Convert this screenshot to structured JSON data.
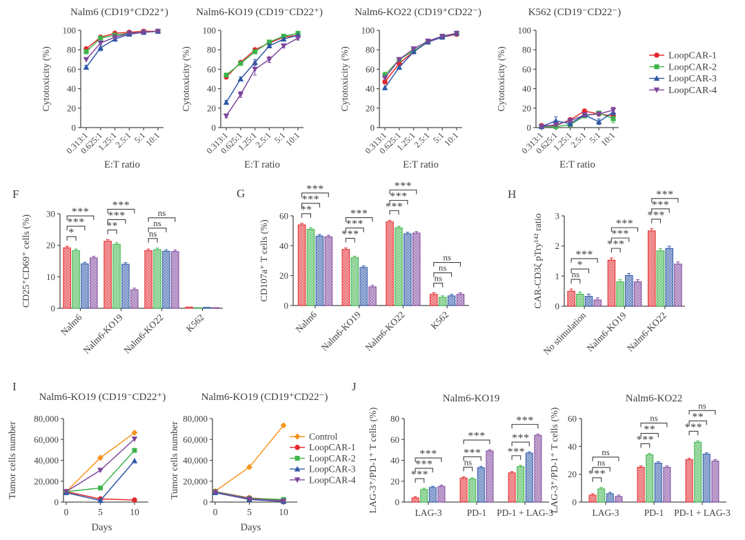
{
  "palette": {
    "red": "#e3282c",
    "green": "#3cb44a",
    "blue": "#2d57a7",
    "purple": "#7e459c",
    "orange": "#f7941e"
  },
  "text_color": "#3e3e3e",
  "panels": {
    "f": "F",
    "g": "G",
    "h": "H",
    "i": "I",
    "j": "J"
  },
  "legend_top": {
    "items": [
      {
        "label": "LoopCAR-1",
        "color": "red",
        "marker": "circle"
      },
      {
        "label": "LoopCAR-2",
        "color": "green",
        "marker": "square"
      },
      {
        "label": "LoopCAR-3",
        "color": "blue",
        "marker": "triangle-up"
      },
      {
        "label": "LoopCAR-4",
        "color": "purple",
        "marker": "triangle-down"
      }
    ]
  },
  "legend_tumor": {
    "items": [
      {
        "label": "Control",
        "color": "orange",
        "marker": "diamond"
      },
      {
        "label": "LoopCAR-1",
        "color": "red",
        "marker": "circle"
      },
      {
        "label": "LoopCAR-2",
        "color": "green",
        "marker": "square"
      },
      {
        "label": "LoopCAR-3",
        "color": "blue",
        "marker": "triangle-up"
      },
      {
        "label": "LoopCAR-4",
        "color": "purple",
        "marker": "triangle-down"
      }
    ]
  },
  "chart_data": [
    {
      "id": "cytotoxicity-nalm6",
      "type": "line",
      "title": "Nalm6 (CD19⁺CD22⁺)",
      "ylabel": "Cytotoxicity (%)",
      "xlabel": "E:T ratio",
      "ylim": [
        0,
        100
      ],
      "yticks": [
        0,
        20,
        40,
        60,
        80,
        100
      ],
      "categories": [
        "0.313:1",
        "0.625:1",
        "1.25:1",
        "2.5:1",
        "5:1",
        "10:1"
      ],
      "series": [
        {
          "name": "LoopCAR-1",
          "color": "red",
          "marker": "circle",
          "values": [
            81,
            93,
            97,
            98,
            99,
            99
          ]
        },
        {
          "name": "LoopCAR-2",
          "color": "green",
          "marker": "square",
          "values": [
            78,
            92,
            95,
            97,
            98,
            99
          ]
        },
        {
          "name": "LoopCAR-3",
          "color": "blue",
          "marker": "triangle-up",
          "values": [
            62,
            82,
            91,
            96,
            98,
            99
          ],
          "err": [
            2,
            3,
            2,
            1,
            0,
            0
          ]
        },
        {
          "name": "LoopCAR-4",
          "color": "purple",
          "marker": "triangle-down",
          "values": [
            70,
            87,
            93,
            97,
            98,
            99
          ]
        }
      ]
    },
    {
      "id": "cytotoxicity-nalm6-ko19",
      "type": "line",
      "title": "Nalm6-KO19 (CD19⁻CD22⁺)",
      "ylabel": "Cytotoxicity (%)",
      "xlabel": "E:T ratio",
      "ylim": [
        0,
        100
      ],
      "yticks": [
        0,
        20,
        40,
        60,
        80,
        100
      ],
      "categories": [
        "0.313:1",
        "0.625:1",
        "1.25:1",
        "2.5:1",
        "5:1",
        "10:1"
      ],
      "series": [
        {
          "name": "LoopCAR-1",
          "color": "red",
          "marker": "circle",
          "values": [
            52,
            67,
            80,
            87,
            93,
            95
          ]
        },
        {
          "name": "LoopCAR-2",
          "color": "green",
          "marker": "square",
          "values": [
            54,
            66,
            78,
            88,
            94,
            97
          ]
        },
        {
          "name": "LoopCAR-3",
          "color": "blue",
          "marker": "triangle-up",
          "values": [
            26,
            50,
            67,
            84,
            91,
            95
          ],
          "err": [
            2,
            2,
            3,
            2,
            0,
            0
          ]
        },
        {
          "name": "LoopCAR-4",
          "color": "purple",
          "marker": "triangle-down",
          "values": [
            12,
            34,
            60,
            70,
            84,
            92
          ],
          "err": [
            2,
            3,
            6,
            3,
            2,
            2
          ]
        }
      ]
    },
    {
      "id": "cytotoxicity-nalm6-ko22",
      "type": "line",
      "title": "Nalm6-KO22 (CD19⁺CD22⁻)",
      "ylabel": "Cytotoxicity (%)",
      "xlabel": "E:T ratio",
      "ylim": [
        0,
        100
      ],
      "yticks": [
        0,
        20,
        40,
        60,
        80,
        100
      ],
      "categories": [
        "0.313:1",
        "0.625:1",
        "1.25:1",
        "2.5:1",
        "5:1",
        "10:1"
      ],
      "series": [
        {
          "name": "LoopCAR-1",
          "color": "red",
          "marker": "circle",
          "values": [
            47,
            66,
            78,
            88,
            93,
            96
          ],
          "err": [
            2,
            2,
            1,
            0,
            0,
            0
          ]
        },
        {
          "name": "LoopCAR-2",
          "color": "green",
          "marker": "square",
          "values": [
            54,
            70,
            79,
            88,
            94,
            97
          ],
          "err": [
            3,
            2,
            1,
            0,
            0,
            0
          ]
        },
        {
          "name": "LoopCAR-3",
          "color": "blue",
          "marker": "triangle-up",
          "values": [
            41,
            62,
            78,
            88,
            93,
            97
          ]
        },
        {
          "name": "LoopCAR-4",
          "color": "purple",
          "marker": "triangle-down",
          "values": [
            51,
            70,
            81,
            89,
            94,
            97
          ]
        }
      ]
    },
    {
      "id": "cytotoxicity-k562",
      "type": "line",
      "title": "K562 (CD19⁻CD22⁻)",
      "ylabel": "Cytotoxicity (%)",
      "xlabel": "E:T ratio",
      "ylim": [
        0,
        100
      ],
      "yticks": [
        0,
        20,
        40,
        60,
        80,
        100
      ],
      "categories": [
        "0.313:1",
        "0.625:1",
        "1.25:1",
        "2.5:1",
        "5:1",
        "10:1"
      ],
      "series": [
        {
          "name": "LoopCAR-1",
          "color": "red",
          "marker": "circle",
          "values": [
            2,
            2,
            8,
            17,
            14,
            12
          ],
          "err": [
            1,
            1,
            2,
            2,
            2,
            3
          ]
        },
        {
          "name": "LoopCAR-2",
          "color": "green",
          "marker": "square",
          "values": [
            1,
            1,
            3,
            12,
            15,
            9
          ],
          "err": [
            1,
            1,
            1,
            2,
            2,
            4
          ]
        },
        {
          "name": "LoopCAR-3",
          "color": "blue",
          "marker": "triangle-up",
          "values": [
            1,
            7,
            4,
            13,
            6,
            16
          ],
          "err": [
            1,
            4,
            2,
            2,
            3,
            3
          ]
        },
        {
          "name": "LoopCAR-4",
          "color": "purple",
          "marker": "triangle-down",
          "values": [
            1,
            3,
            7,
            13,
            14,
            18
          ],
          "err": [
            1,
            2,
            2,
            2,
            2,
            3
          ]
        }
      ]
    },
    {
      "id": "cd25-cd69-activation",
      "type": "bar",
      "title": "",
      "ylabel": "CD25⁺CD69⁺ cells (%)",
      "ylim": [
        0,
        30
      ],
      "yticks": [
        0,
        10,
        20,
        30
      ],
      "err": 0.5,
      "categories": [
        "Nalm6",
        "Nalm6-KO19",
        "Nalm6-KO22",
        "K562"
      ],
      "series": [
        {
          "name": "LoopCAR-1",
          "color": "red",
          "values": [
            19.2,
            21.3,
            18.3,
            0.4
          ]
        },
        {
          "name": "LoopCAR-2",
          "color": "green",
          "values": [
            18.3,
            20.3,
            18.6,
            0.2
          ]
        },
        {
          "name": "LoopCAR-3",
          "color": "blue",
          "values": [
            14.1,
            14.0,
            18.1,
            0.3
          ]
        },
        {
          "name": "LoopCAR-4",
          "color": "purple",
          "values": [
            16.0,
            5.9,
            18.0,
            0.2
          ]
        }
      ],
      "sig": [
        [
          "*",
          "***",
          "***"
        ],
        [
          "**",
          "***",
          "***"
        ],
        [
          "ns",
          "ns",
          "ns"
        ],
        null
      ]
    },
    {
      "id": "cd107a-degranulation",
      "type": "bar",
      "title": "",
      "ylabel": "CD107a⁺ T cells (%)",
      "ylim": [
        0,
        60
      ],
      "yticks": [
        0,
        20,
        40,
        60
      ],
      "err": 1,
      "categories": [
        "Nalm6",
        "Nalm6-KO19",
        "Nalm6-KO22",
        "K562"
      ],
      "series": [
        {
          "name": "LoopCAR-1",
          "color": "red",
          "values": [
            54,
            37.5,
            56,
            7.5
          ]
        },
        {
          "name": "LoopCAR-2",
          "color": "green",
          "values": [
            51,
            32,
            52,
            5.5
          ]
        },
        {
          "name": "LoopCAR-3",
          "color": "blue",
          "values": [
            46.5,
            25.5,
            48,
            6.5
          ]
        },
        {
          "name": "LoopCAR-4",
          "color": "purple",
          "values": [
            46,
            12.5,
            48.5,
            7.5
          ]
        }
      ],
      "sig": [
        [
          "**",
          "***",
          "***"
        ],
        [
          "***",
          "***",
          "***"
        ],
        [
          "***",
          "***",
          "***"
        ],
        [
          "ns",
          "ns",
          "ns"
        ]
      ]
    },
    {
      "id": "car-cd3zeta-ratio",
      "type": "bar",
      "title": "",
      "ylabel": "CAR-CD3ζ pTry¹⁴² ratio",
      "ylim": [
        0,
        3
      ],
      "yticks": [
        0,
        1,
        2,
        3
      ],
      "err": 0.07,
      "categories": [
        "No stimulation",
        "Nalm6-KO19",
        "Nalm6-KO22"
      ],
      "series": [
        {
          "name": "LoopCAR-1",
          "color": "red",
          "values": [
            0.5,
            1.53,
            2.5
          ]
        },
        {
          "name": "LoopCAR-2",
          "color": "green",
          "values": [
            0.4,
            0.81,
            1.84
          ]
        },
        {
          "name": "LoopCAR-3",
          "color": "blue",
          "values": [
            0.33,
            1.02,
            1.92
          ]
        },
        {
          "name": "LoopCAR-4",
          "color": "purple",
          "values": [
            0.21,
            0.81,
            1.4
          ]
        }
      ],
      "sig": [
        [
          "ns",
          "*",
          "***"
        ],
        [
          "***",
          "***",
          "***"
        ],
        [
          "***",
          "***",
          "***"
        ]
      ]
    },
    {
      "id": "tumor-cells-ko19-cd19neg-cd22pos",
      "type": "line",
      "title": "Nalm6-KO19 (CD19⁻CD22⁺)",
      "ylabel": "Tumor cells number",
      "xlabel": "Days",
      "ylim": [
        0,
        80000
      ],
      "yticks": [
        0,
        20000,
        40000,
        60000,
        80000
      ],
      "x": [
        0,
        5,
        10
      ],
      "series": [
        {
          "name": "Control",
          "color": "orange",
          "marker": "diamond",
          "values": [
            10000,
            42500,
            66500
          ]
        },
        {
          "name": "LoopCAR-1",
          "color": "red",
          "marker": "circle",
          "values": [
            10000,
            3000,
            2000
          ]
        },
        {
          "name": "LoopCAR-2",
          "color": "green",
          "marker": "square",
          "values": [
            10000,
            13500,
            49500
          ]
        },
        {
          "name": "LoopCAR-3",
          "color": "blue",
          "marker": "triangle-up",
          "values": [
            9000,
            1500,
            39500
          ]
        },
        {
          "name": "LoopCAR-4",
          "color": "purple",
          "marker": "triangle-down",
          "values": [
            10000,
            30500,
            60500
          ]
        }
      ]
    },
    {
      "id": "tumor-cells-ko19-cd19pos-cd22neg",
      "type": "line",
      "title": "Nalm6-KO19 (CD19⁺CD22⁻)",
      "ylabel": "Tumor cells number",
      "xlabel": "Days",
      "ylim": [
        0,
        80000
      ],
      "yticks": [
        0,
        20000,
        40000,
        60000,
        80000
      ],
      "x": [
        0,
        5,
        10
      ],
      "series": [
        {
          "name": "Control",
          "color": "orange",
          "marker": "diamond",
          "values": [
            10500,
            33500,
            73500
          ]
        },
        {
          "name": "LoopCAR-1",
          "color": "red",
          "marker": "circle",
          "values": [
            10000,
            4000,
            2000
          ]
        },
        {
          "name": "LoopCAR-2",
          "color": "green",
          "marker": "square",
          "values": [
            10000,
            3500,
            2500
          ]
        },
        {
          "name": "LoopCAR-3",
          "color": "blue",
          "marker": "triangle-up",
          "values": [
            9000,
            2500,
            500
          ]
        },
        {
          "name": "LoopCAR-4",
          "color": "purple",
          "marker": "triangle-down",
          "values": [
            9500,
            3000,
            1000
          ]
        }
      ]
    },
    {
      "id": "lag3-pd1-nalm6-ko19",
      "type": "bar",
      "title": "Nalm6-KO19",
      "ylabel": "LAG-3⁺/PD-1⁺ T cells (%)",
      "ylim": [
        0,
        80
      ],
      "yticks": [
        0,
        20,
        40,
        60,
        80
      ],
      "err": 1.2,
      "categories": [
        "LAG-3",
        "PD-1",
        "PD-1 + LAG-3"
      ],
      "series": [
        {
          "name": "LoopCAR-1",
          "color": "red",
          "values": [
            4,
            23,
            28
          ]
        },
        {
          "name": "LoopCAR-2",
          "color": "green",
          "values": [
            12,
            22,
            34
          ]
        },
        {
          "name": "LoopCAR-3",
          "color": "blue",
          "values": [
            14,
            33,
            47
          ]
        },
        {
          "name": "LoopCAR-4",
          "color": "purple",
          "values": [
            15,
            49,
            64
          ]
        }
      ],
      "sig": [
        [
          "***",
          "***",
          "***"
        ],
        [
          "ns",
          "***",
          "***"
        ],
        [
          "***",
          "***",
          "***"
        ]
      ]
    },
    {
      "id": "lag3-pd1-nalm6-ko22",
      "type": "bar",
      "title": "Nalm6-KO22",
      "ylabel": "LAG-3⁺/PD-1⁺ T cells (%)",
      "ylim": [
        0,
        60
      ],
      "yticks": [
        0,
        20,
        40,
        60
      ],
      "err": 1,
      "categories": [
        "LAG-3",
        "PD-1",
        "PD-1 + LAG-3"
      ],
      "series": [
        {
          "name": "LoopCAR-1",
          "color": "red",
          "values": [
            5,
            25,
            30.5
          ]
        },
        {
          "name": "LoopCAR-2",
          "color": "green",
          "values": [
            9.5,
            34,
            43
          ]
        },
        {
          "name": "LoopCAR-3",
          "color": "blue",
          "values": [
            6,
            28,
            34.5
          ]
        },
        {
          "name": "LoopCAR-4",
          "color": "purple",
          "values": [
            4,
            25,
            29.5
          ]
        }
      ],
      "sig": [
        [
          "***",
          "ns",
          "ns"
        ],
        [
          "***",
          "**",
          "ns"
        ],
        [
          "***",
          "**",
          "ns"
        ]
      ]
    }
  ]
}
